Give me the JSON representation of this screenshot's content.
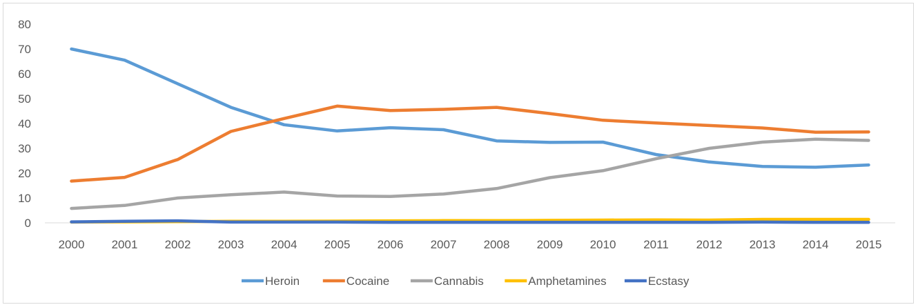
{
  "chart_data": {
    "type": "line",
    "title": "",
    "xlabel": "",
    "ylabel": "",
    "x": [
      "2000",
      "2001",
      "2002",
      "2003",
      "2004",
      "2005",
      "2006",
      "2007",
      "2008",
      "2009",
      "2010",
      "2011",
      "2012",
      "2013",
      "2014",
      "2015"
    ],
    "ylim": [
      0,
      80
    ],
    "yticks": [
      "0",
      "10",
      "20",
      "30",
      "40",
      "50",
      "60",
      "70",
      "80"
    ],
    "grid": false,
    "legend_position": "bottom",
    "series": [
      {
        "name": "Heroin",
        "color": "#5B9BD5",
        "values": [
          70,
          65.5,
          56,
          46.5,
          39.5,
          37,
          38.3,
          37.5,
          33,
          32.4,
          32.5,
          27.5,
          24.5,
          22.7,
          22.4,
          23.3
        ]
      },
      {
        "name": "Cocaine",
        "color": "#ED7D31",
        "values": [
          16.8,
          18.3,
          25.5,
          36.8,
          42,
          47,
          45.2,
          45.7,
          46.5,
          44,
          41.3,
          40.2,
          39.2,
          38.2,
          36.5,
          36.6
        ]
      },
      {
        "name": "Cannabis",
        "color": "#A5A5A5",
        "values": [
          5.8,
          7,
          10,
          11.3,
          12.4,
          10.8,
          10.6,
          11.6,
          13.8,
          18.2,
          21,
          25.8,
          30,
          32.5,
          33.7,
          33.2
        ]
      },
      {
        "name": "Amphetamines",
        "color": "#FFC000",
        "values": [
          0.3,
          0.4,
          0.5,
          0.6,
          0.6,
          0.7,
          0.8,
          0.9,
          0.9,
          1,
          1.1,
          1.2,
          1.1,
          1.4,
          1.4,
          1.4
        ]
      },
      {
        "name": "Ecstasy",
        "color": "#4472C4",
        "values": [
          0.4,
          0.6,
          0.8,
          0.3,
          0.3,
          0.3,
          0.2,
          0.2,
          0.2,
          0.2,
          0.2,
          0.2,
          0.2,
          0.3,
          0.2,
          0.2
        ]
      }
    ]
  }
}
